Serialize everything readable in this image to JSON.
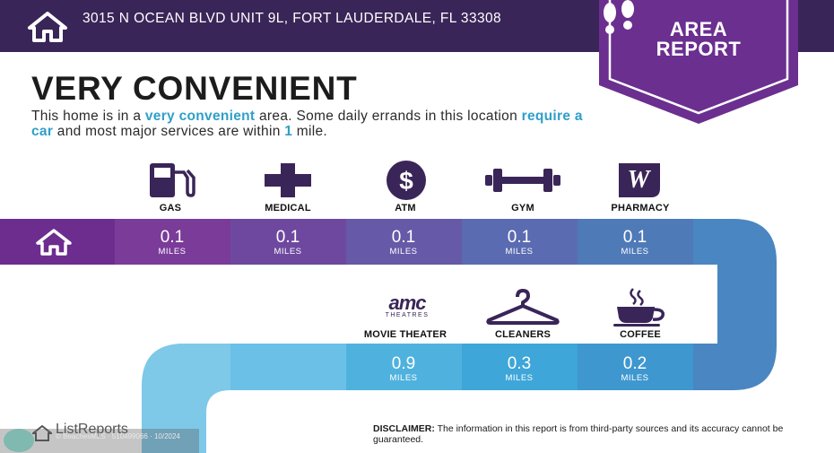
{
  "header": {
    "address": "3015 N OCEAN BLVD UNIT 9L, FORT LAUDERDALE, FL 33308"
  },
  "badge": {
    "line1": "AREA",
    "line2": "REPORT"
  },
  "title": "VERY CONVENIENT",
  "description": {
    "p1": "This home is in a ",
    "h1": "very convenient",
    "p2": " area. Some daily errands in this location ",
    "h2": "require a car",
    "p3": " and most major services are within ",
    "h3": "1",
    "p4": " mile."
  },
  "row1": [
    {
      "label": "GAS",
      "value": "0.1",
      "unit": "MILES",
      "icon": "gas-pump-icon"
    },
    {
      "label": "MEDICAL",
      "value": "0.1",
      "unit": "MILES",
      "icon": "medical-cross-icon"
    },
    {
      "label": "ATM",
      "value": "0.1",
      "unit": "MILES",
      "icon": "dollar-icon"
    },
    {
      "label": "GYM",
      "value": "0.1",
      "unit": "MILES",
      "icon": "dumbbell-icon"
    },
    {
      "label": "PHARMACY",
      "value": "0.1",
      "unit": "MILES",
      "icon": "walgreens-logo-icon"
    }
  ],
  "row2": [
    {
      "label": "MOVIE THEATER",
      "value": "0.9",
      "unit": "MILES",
      "icon": "amc-theatres-logo-icon",
      "logo_text": "amc",
      "logo_sub": "THEATRES"
    },
    {
      "label": "CLEANERS",
      "value": "0.3",
      "unit": "MILES",
      "icon": "hanger-icon"
    },
    {
      "label": "COFFEE",
      "value": "0.2",
      "unit": "MILES",
      "icon": "coffee-cup-icon"
    }
  ],
  "footer": {
    "logo": "ListReports",
    "watermark": "© BeachesMLS · 510499066 · 10/2024",
    "disclaimer_label": "DISCLAIMER:",
    "disclaimer_text": " The information in this report is from third-party sources and its accuracy cannot be guaranteed."
  },
  "colors": {
    "header_bg": "#3a2558",
    "badge": "#6b2f8f",
    "highlight": "#2f9fc9",
    "path_start": "#6c2d8f",
    "path_end": "#7ec8e8"
  }
}
